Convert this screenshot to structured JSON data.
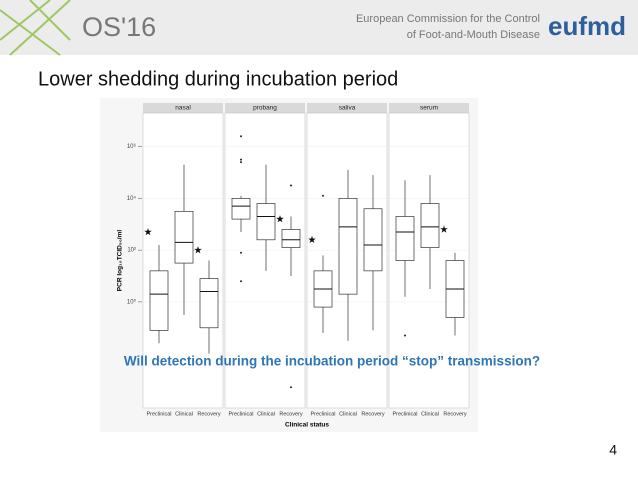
{
  "header": {
    "event": "OS'16",
    "org_line1": "European Commission for the Control",
    "org_line2": "of Foot-and-Mouth Disease",
    "logo": "eufmd"
  },
  "title": "Lower shedding during incubation period",
  "question": "Will detection during the incubation period “stop” transmission?",
  "page_number": "4",
  "chart_data": {
    "type": "box",
    "xlabel": "Clinical status",
    "ylabel": "PCR log₁₀TCID₅₀/ml",
    "ylim": [
      -4.1,
      7.3
    ],
    "yticks": [
      {
        "value": 0,
        "label": "10⁰"
      },
      {
        "value": 2,
        "label": "10²"
      },
      {
        "value": 4,
        "label": "10⁴"
      },
      {
        "value": 6,
        "label": "10⁶"
      }
    ],
    "categories": [
      "Preclinical",
      "Clinical",
      "Recovery"
    ],
    "facets": [
      {
        "name": "nasal",
        "boxes": [
          {
            "low": -1.6,
            "q1": -1.1,
            "median": 0.3,
            "q3": 1.2,
            "high": 2.2
          },
          {
            "low": -0.5,
            "q1": 1.5,
            "median": 2.3,
            "q3": 3.5,
            "high": 5.3
          },
          {
            "low": -2.0,
            "q1": -1.0,
            "median": 0.4,
            "q3": 0.9,
            "high": 1.6
          }
        ],
        "outliers": [
          [],
          [],
          []
        ],
        "stars": [
          2.7,
          null,
          2.0
        ]
      },
      {
        "name": "probang",
        "boxes": [
          {
            "low": 2.7,
            "q1": 3.2,
            "median": 3.7,
            "q3": 4.0,
            "high": 4.1
          },
          {
            "low": 1.2,
            "q1": 2.4,
            "median": 3.3,
            "q3": 3.8,
            "high": 5.3
          },
          {
            "low": 1.0,
            "q1": 2.1,
            "median": 2.4,
            "q3": 2.8,
            "high": 3.3
          }
        ],
        "outliers": [
          [
            6.4,
            5.4,
            5.5,
            1.9,
            0.8
          ],
          [],
          [
            4.5,
            -3.3
          ]
        ],
        "stars": [
          null,
          null,
          3.2
        ]
      },
      {
        "name": "saliva",
        "boxes": [
          {
            "low": -1.2,
            "q1": -0.2,
            "median": 0.5,
            "q3": 1.2,
            "high": 1.8
          },
          {
            "low": -1.5,
            "q1": 0.3,
            "median": 2.9,
            "q3": 4.0,
            "high": 5.1
          },
          {
            "low": -1.1,
            "q1": 1.2,
            "median": 2.2,
            "q3": 3.6,
            "high": 4.9
          }
        ],
        "outliers": [
          [
            4.1
          ],
          [],
          []
        ],
        "stars": [
          2.4,
          null,
          null
        ]
      },
      {
        "name": "serum",
        "boxes": [
          {
            "low": 0.2,
            "q1": 1.6,
            "median": 2.7,
            "q3": 3.3,
            "high": 4.7
          },
          {
            "low": 0.5,
            "q1": 2.1,
            "median": 2.9,
            "q3": 3.8,
            "high": 4.9
          },
          {
            "low": -1.3,
            "q1": -0.6,
            "median": 0.5,
            "q3": 1.6,
            "high": 1.9
          }
        ],
        "outliers": [
          [
            -1.3
          ],
          [],
          []
        ],
        "stars": [
          null,
          null,
          2.8
        ]
      }
    ]
  }
}
